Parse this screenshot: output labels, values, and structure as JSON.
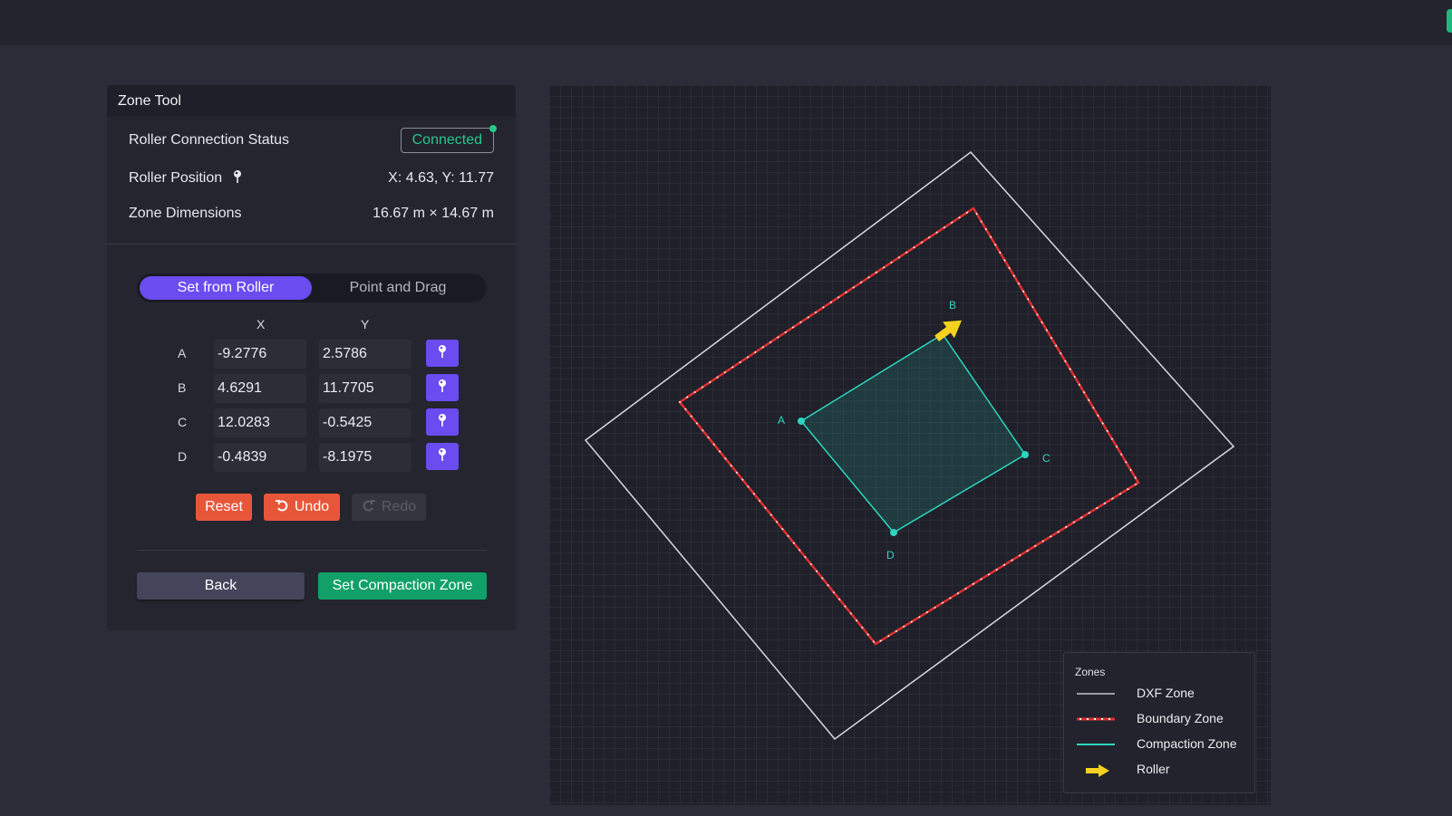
{
  "panel": {
    "title": "Zone Tool",
    "connection_label": "Roller Connection Status",
    "connection_status": "Connected",
    "position_label": "Roller Position",
    "position_value": "X: 4.63, Y: 11.77",
    "dimensions_label": "Zone Dimensions",
    "dimensions_value": "16.67 m × 14.67 m"
  },
  "mode_tabs": [
    {
      "label": "Set from Roller",
      "active": true
    },
    {
      "label": "Point and Drag",
      "active": false
    }
  ],
  "points_table": {
    "columns": [
      "X",
      "Y"
    ],
    "rows": [
      {
        "name": "A",
        "x": "-9.2776",
        "y": "2.5786"
      },
      {
        "name": "B",
        "x": "4.6291",
        "y": "11.7705"
      },
      {
        "name": "C",
        "x": "12.0283",
        "y": "-0.5425"
      },
      {
        "name": "D",
        "x": "-0.4839",
        "y": "-8.1975"
      }
    ]
  },
  "actions": {
    "reset": "Reset",
    "undo": "Undo",
    "redo": "Redo",
    "back": "Back",
    "set_zone": "Set Compaction Zone"
  },
  "map": {
    "point_labels": [
      "A",
      "B",
      "C",
      "D"
    ],
    "colors": {
      "dxf": "#d8d8de",
      "boundary": "#e23030",
      "compaction": "#2ad6c0",
      "roller": "#f4d21f",
      "accent": "#6a4cf0",
      "success": "#11a068",
      "danger": "#e8563a"
    }
  },
  "legend": {
    "title": "Zones",
    "items": [
      "DXF Zone",
      "Boundary Zone",
      "Compaction Zone",
      "Roller"
    ]
  },
  "icons": {
    "pin": "pin-icon",
    "undo": "undo-icon",
    "redo": "redo-icon",
    "roller": "arrow-icon"
  }
}
